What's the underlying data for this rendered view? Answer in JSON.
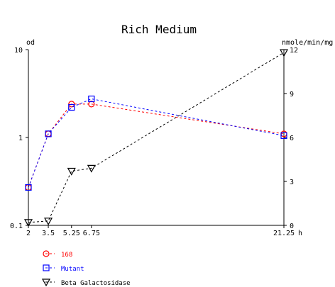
{
  "chart_data": {
    "type": "line",
    "title": "Rich Medium",
    "x_unit": "h",
    "x_ticks": [
      "2",
      "3.5",
      "5.25",
      "6.75",
      "21.25"
    ],
    "x_range": [
      2,
      21.25
    ],
    "y_left": {
      "label": "od",
      "scale": "log",
      "range": [
        0.1,
        10
      ],
      "ticks": [
        "0.1",
        "1",
        "10"
      ]
    },
    "y_right": {
      "label": "nmole/min/mg",
      "scale": "linear",
      "range": [
        0,
        12
      ],
      "ticks": [
        "0",
        "3",
        "6",
        "9",
        "12"
      ]
    },
    "grid": false,
    "legend_position": "bottom-left",
    "series": [
      {
        "name": "168",
        "axis": "left",
        "color": "#ff0000",
        "marker": "circle",
        "x": [
          2,
          3.5,
          5.25,
          6.75,
          21.25
        ],
        "y": [
          0.27,
          1.1,
          2.4,
          2.4,
          1.1
        ]
      },
      {
        "name": "Mutant",
        "axis": "left",
        "color": "#0000ff",
        "marker": "square",
        "x": [
          2,
          3.5,
          5.25,
          6.75,
          21.25
        ],
        "y": [
          0.27,
          1.1,
          2.2,
          2.75,
          1.05
        ]
      },
      {
        "name": "Beta Galactosidase",
        "axis": "right",
        "color": "#000000",
        "marker": "triangle-down",
        "x": [
          2,
          3.5,
          5.25,
          6.75,
          21.25
        ],
        "y": [
          0.2,
          0.3,
          3.7,
          3.9,
          11.8
        ]
      }
    ]
  }
}
